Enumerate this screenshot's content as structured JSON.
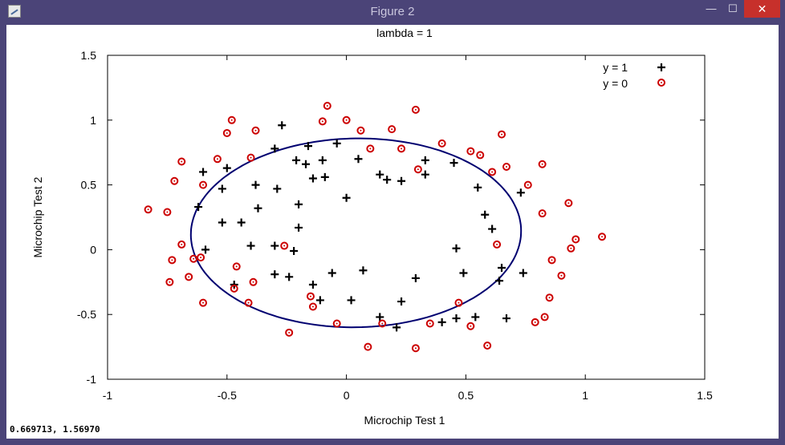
{
  "window": {
    "title": "Figure 2",
    "buttons": {
      "minimize": "—",
      "maximize": "☐",
      "close": "✕"
    },
    "status_readout": "0.669713,  1.56970"
  },
  "chart_data": {
    "type": "scatter",
    "title": "lambda = 1",
    "xlabel": "Microchip Test 1",
    "ylabel": "Microchip Test 2",
    "xlim": [
      -1,
      1.5
    ],
    "ylim": [
      -1,
      1.5
    ],
    "xticks": [
      -1,
      -0.5,
      0,
      0.5,
      1,
      1.5
    ],
    "yticks": [
      -1,
      -0.5,
      0,
      0.5,
      1,
      1.5
    ],
    "xtick_labels": [
      "-1",
      "-0.5",
      "0",
      "0.5",
      "1",
      "1.5"
    ],
    "ytick_labels": [
      "-1",
      "-0.5",
      "0",
      "0.5",
      "1",
      "1.5"
    ],
    "grid": false,
    "legend_position": "top-right",
    "colors": {
      "positive": "#000000",
      "negative": "#cc0000",
      "boundary": "#000070"
    },
    "series": [
      {
        "name": "y = 1",
        "marker": "plus",
        "points": [
          [
            -0.6,
            0.6
          ],
          [
            -0.5,
            0.63
          ],
          [
            -0.38,
            0.5
          ],
          [
            -0.62,
            0.33
          ],
          [
            -0.52,
            0.47
          ],
          [
            -0.59,
            0.0
          ],
          [
            -0.52,
            0.21
          ],
          [
            -0.44,
            0.21
          ],
          [
            -0.37,
            0.32
          ],
          [
            -0.4,
            0.03
          ],
          [
            -0.3,
            0.78
          ],
          [
            -0.27,
            0.96
          ],
          [
            -0.21,
            0.69
          ],
          [
            -0.17,
            0.66
          ],
          [
            -0.16,
            0.8
          ],
          [
            -0.14,
            0.55
          ],
          [
            -0.09,
            0.56
          ],
          [
            -0.1,
            0.69
          ],
          [
            -0.04,
            0.82
          ],
          [
            0.05,
            0.7
          ],
          [
            -0.29,
            0.47
          ],
          [
            -0.2,
            0.35
          ],
          [
            -0.2,
            0.17
          ],
          [
            0.0,
            0.4
          ],
          [
            0.14,
            0.58
          ],
          [
            0.17,
            0.54
          ],
          [
            0.23,
            0.53
          ],
          [
            0.33,
            0.58
          ],
          [
            0.33,
            0.69
          ],
          [
            0.45,
            0.67
          ],
          [
            -0.3,
            0.03
          ],
          [
            -0.22,
            -0.01
          ],
          [
            -0.3,
            -0.19
          ],
          [
            -0.24,
            -0.21
          ],
          [
            -0.14,
            -0.27
          ],
          [
            -0.11,
            -0.39
          ],
          [
            -0.06,
            -0.18
          ],
          [
            0.02,
            -0.39
          ],
          [
            0.07,
            -0.16
          ],
          [
            0.14,
            -0.52
          ],
          [
            0.21,
            -0.6
          ],
          [
            0.23,
            -0.4
          ],
          [
            0.29,
            -0.22
          ],
          [
            0.4,
            -0.56
          ],
          [
            0.46,
            -0.53
          ],
          [
            0.46,
            0.01
          ],
          [
            0.49,
            -0.18
          ],
          [
            0.54,
            -0.52
          ],
          [
            0.55,
            0.48
          ],
          [
            0.58,
            0.27
          ],
          [
            0.61,
            0.16
          ],
          [
            0.64,
            -0.24
          ],
          [
            0.65,
            -0.14
          ],
          [
            0.67,
            -0.53
          ],
          [
            0.73,
            0.44
          ],
          [
            0.74,
            -0.18
          ],
          [
            -0.47,
            -0.27
          ]
        ]
      },
      {
        "name": "y = 0",
        "marker": "circle",
        "points": [
          [
            -0.83,
            0.31
          ],
          [
            -0.75,
            0.29
          ],
          [
            -0.72,
            0.53
          ],
          [
            -0.69,
            0.68
          ],
          [
            -0.54,
            0.7
          ],
          [
            -0.5,
            0.9
          ],
          [
            -0.48,
            1.0
          ],
          [
            -0.38,
            0.92
          ],
          [
            -0.4,
            0.71
          ],
          [
            -0.6,
            0.5
          ],
          [
            -0.26,
            0.03
          ],
          [
            -0.1,
            0.99
          ],
          [
            -0.08,
            1.11
          ],
          [
            0.0,
            1.0
          ],
          [
            0.06,
            0.92
          ],
          [
            0.1,
            0.78
          ],
          [
            0.19,
            0.93
          ],
          [
            0.23,
            0.78
          ],
          [
            0.29,
            1.08
          ],
          [
            0.3,
            0.62
          ],
          [
            0.4,
            0.82
          ],
          [
            0.52,
            0.76
          ],
          [
            0.56,
            0.73
          ],
          [
            0.61,
            0.6
          ],
          [
            0.65,
            0.89
          ],
          [
            0.67,
            0.64
          ],
          [
            0.76,
            0.5
          ],
          [
            0.82,
            0.66
          ],
          [
            0.82,
            0.28
          ],
          [
            0.93,
            0.36
          ],
          [
            0.96,
            0.08
          ],
          [
            0.94,
            0.01
          ],
          [
            1.07,
            0.1
          ],
          [
            0.86,
            -0.08
          ],
          [
            0.9,
            -0.2
          ],
          [
            0.85,
            -0.37
          ],
          [
            0.83,
            -0.52
          ],
          [
            0.79,
            -0.56
          ],
          [
            0.59,
            -0.74
          ],
          [
            0.52,
            -0.59
          ],
          [
            0.47,
            -0.41
          ],
          [
            0.63,
            0.04
          ],
          [
            0.35,
            -0.57
          ],
          [
            0.29,
            -0.76
          ],
          [
            0.09,
            -0.75
          ],
          [
            0.15,
            -0.57
          ],
          [
            -0.04,
            -0.57
          ],
          [
            -0.24,
            -0.64
          ],
          [
            -0.15,
            -0.36
          ],
          [
            -0.14,
            -0.44
          ],
          [
            -0.47,
            -0.3
          ],
          [
            -0.41,
            -0.41
          ],
          [
            -0.39,
            -0.25
          ],
          [
            -0.46,
            -0.13
          ],
          [
            -0.61,
            -0.06
          ],
          [
            -0.69,
            0.04
          ],
          [
            -0.73,
            -0.08
          ],
          [
            -0.66,
            -0.21
          ],
          [
            -0.74,
            -0.25
          ],
          [
            -0.6,
            -0.41
          ],
          [
            -0.64,
            -0.07
          ]
        ]
      }
    ],
    "decision_boundary": {
      "shape": "ellipse",
      "center": [
        0.04,
        0.13
      ],
      "semi_axes": [
        0.69,
        0.73
      ],
      "rotation_deg": -10
    }
  }
}
